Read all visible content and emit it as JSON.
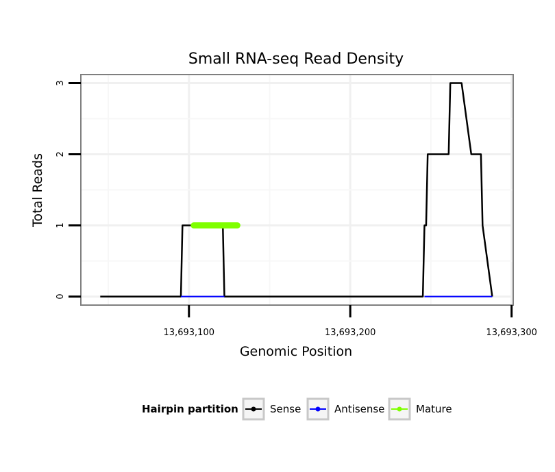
{
  "chart_data": {
    "type": "line",
    "title": "Small RNA-seq Read Density",
    "xlabel": "Genomic Position",
    "ylabel": "Total Reads",
    "xlim": [
      13693033,
      13693301
    ],
    "ylim": [
      -0.12,
      3.12
    ],
    "x_ticks": [
      13693100,
      13693200,
      13693300
    ],
    "x_tick_labels": [
      "13,693,100",
      "13,693,200",
      "13,693,300"
    ],
    "y_ticks": [
      0,
      1,
      2,
      3
    ],
    "y_tick_labels": [
      "0",
      "1",
      "2",
      "3"
    ],
    "grid": true,
    "legend_position": "bottom",
    "legend_title": "Hairpin partition",
    "series": [
      {
        "name": "Sense",
        "color": "#000000",
        "x": [
          13693045,
          13693051,
          13693052,
          13693060,
          13693061,
          13693069,
          13693070,
          13693078,
          13693079,
          13693087,
          13693088,
          13693094,
          13693095,
          13693096,
          13693097,
          13693102,
          13693103,
          13693109,
          13693110,
          13693116,
          13693117,
          13693121,
          13693122,
          13693123,
          13693124,
          13693130,
          13693131,
          13693140,
          13693141,
          13693150,
          13693151,
          13693160,
          13693161,
          13693170,
          13693171,
          13693180,
          13693181,
          13693190,
          13693191,
          13693200,
          13693201,
          13693210,
          13693211,
          13693220,
          13693221,
          13693230,
          13693231,
          13693240,
          13693241,
          13693245,
          13693246,
          13693247,
          13693248,
          13693254,
          13693255,
          13693261,
          13693262,
          13693268,
          13693269,
          13693275,
          13693276,
          13693281,
          13693282,
          13693288
        ],
        "y": [
          0,
          0,
          0,
          0,
          0,
          0,
          0,
          0,
          0,
          0,
          0,
          0,
          0,
          1,
          1,
          1,
          1,
          1,
          1,
          1,
          1,
          1,
          0,
          0,
          0,
          0,
          0,
          0,
          0,
          0,
          0,
          0,
          0,
          0,
          0,
          0,
          0,
          0,
          0,
          0,
          0,
          0,
          0,
          0,
          0,
          0,
          0,
          0,
          0,
          0,
          1,
          1,
          2,
          2,
          2,
          2,
          3,
          3,
          3,
          2,
          2,
          2,
          1,
          0
        ]
      },
      {
        "name": "Antisense",
        "color": "#0000ff",
        "x": [
          13693095,
          13693122,
          13693246,
          13693288
        ],
        "y": [
          0,
          0,
          0,
          0
        ]
      },
      {
        "name": "Mature",
        "color": "#7fff00",
        "x": [
          13693103,
          13693130
        ],
        "y": [
          1,
          1
        ]
      }
    ]
  }
}
